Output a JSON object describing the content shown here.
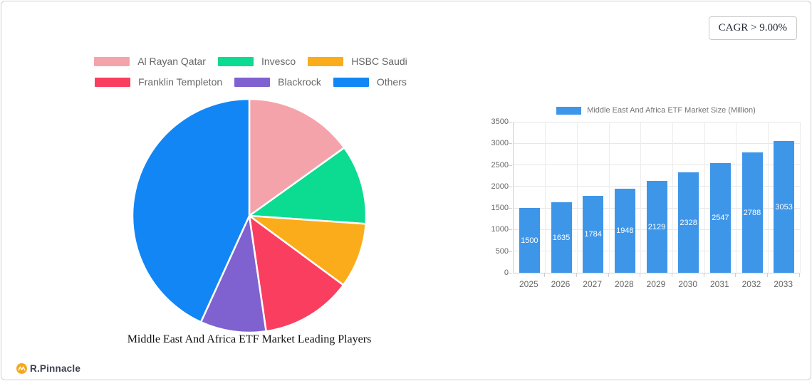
{
  "header": {
    "cagr_label": "CAGR > 9.00%"
  },
  "footer": {
    "brand": "R.Pinnacle",
    "brand_icon": "pinnacle-circle-icon",
    "brand_icon_color": "#F6A71C"
  },
  "colors": {
    "grid": "#e7e7e7",
    "axis": "#cfcfcf",
    "axis_text": "#666666",
    "bar_value_text": "#ffffff"
  },
  "chart_data": [
    {
      "type": "pie",
      "title": "Middle East And Africa ETF Market Leading Players",
      "labels": [
        "Al Rayan Qatar",
        "Invesco",
        "HSBC Saudi",
        "Franklin Templeton",
        "Blackrock",
        "Others"
      ],
      "values": [
        15.1,
        11.0,
        9.0,
        12.6,
        9.1,
        43.2
      ],
      "colors": [
        "#F5A3AA",
        "#0CDB92",
        "#FBAC1A",
        "#FA3E5F",
        "#7F61D0",
        "#1286F5"
      ],
      "legend_position": "top",
      "start_angle_deg": 0,
      "direction": "clockwise",
      "note": "slice percentages estimated from slice angles; no data labels shown"
    },
    {
      "type": "bar",
      "legend_label": "Middle East And Africa ETF Market Size (Million)",
      "categories": [
        "2025",
        "2026",
        "2027",
        "2028",
        "2029",
        "2030",
        "2031",
        "2032",
        "2033"
      ],
      "values": [
        1500,
        1635,
        1784,
        1948,
        2129,
        2328,
        2547,
        2788,
        3053
      ],
      "bar_color": "#3E96E9",
      "ylim": [
        0,
        3500
      ],
      "ytick_step": 500,
      "grid": true,
      "value_labels": "inside bars, white, centered"
    }
  ]
}
